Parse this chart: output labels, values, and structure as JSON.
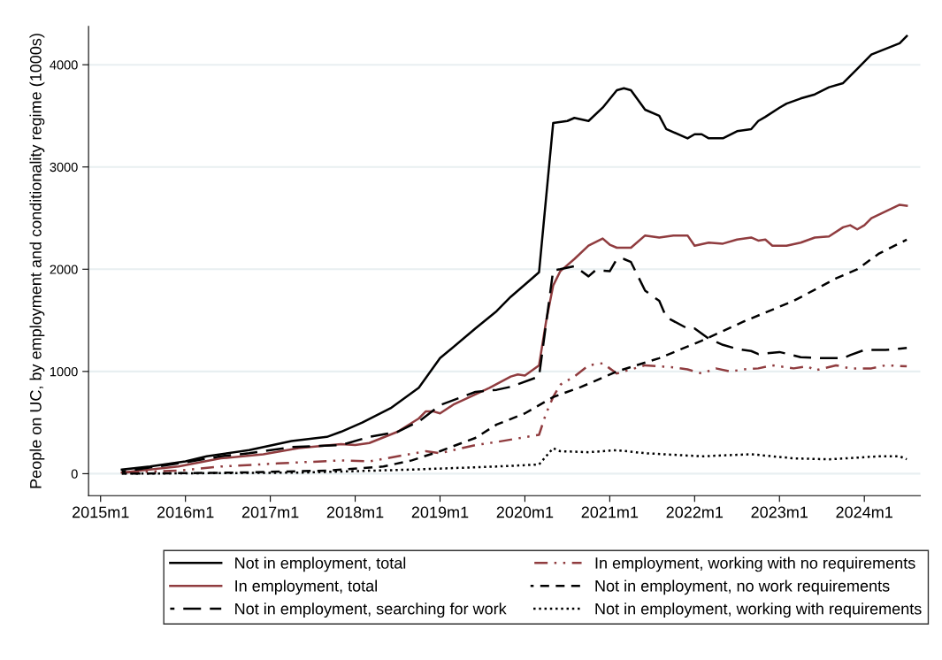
{
  "chart_data": {
    "type": "line",
    "ylabel": "People on UC, by employment and conditionality regime (1000s)",
    "xlim": [
      "2014-11-10",
      "2024-08-29"
    ],
    "ylim": [
      -215,
      4375
    ],
    "xticks": [
      {
        "value": "2015-01",
        "label": "2015m1"
      },
      {
        "value": "2016-01",
        "label": "2016m1"
      },
      {
        "value": "2017-01",
        "label": "2017m1"
      },
      {
        "value": "2018-01",
        "label": "2018m1"
      },
      {
        "value": "2019-01",
        "label": "2019m1"
      },
      {
        "value": "2020-01",
        "label": "2020m1"
      },
      {
        "value": "2021-01",
        "label": "2021m1"
      },
      {
        "value": "2022-01",
        "label": "2022m1"
      },
      {
        "value": "2023-01",
        "label": "2023m1"
      },
      {
        "value": "2024-01",
        "label": "2024m1"
      }
    ],
    "yticks": [
      0,
      1000,
      2000,
      3000,
      4000
    ],
    "grid": "y",
    "legend": "bottom",
    "series": [
      {
        "name": "Not in employment, total",
        "color": "#000000",
        "line_style": "solid",
        "x": [
          "2015-04",
          "2015-08",
          "2016-01",
          "2016-04",
          "2016-10",
          "2017-04",
          "2017-09",
          "2017-11",
          "2018-02",
          "2018-06",
          "2018-10",
          "2019-01",
          "2019-06",
          "2019-09",
          "2019-11",
          "2020-02",
          "2020-03",
          "2020-05",
          "2020-07",
          "2020-08",
          "2020-10",
          "2020-12",
          "2021-02",
          "2021-03",
          "2021-04",
          "2021-06",
          "2021-08",
          "2021-09",
          "2021-12",
          "2022-01",
          "2022-02",
          "2022-03",
          "2022-05",
          "2022-07",
          "2022-09",
          "2022-10",
          "2022-11",
          "2023-01",
          "2023-02",
          "2023-04",
          "2023-06",
          "2023-08",
          "2023-10",
          "2023-12",
          "2024-02",
          "2024-06",
          "2024-07"
        ],
        "values": [
          40,
          70,
          120,
          170,
          230,
          320,
          360,
          410,
          500,
          640,
          840,
          1130,
          1420,
          1590,
          1730,
          1910,
          1970,
          3430,
          3450,
          3480,
          3450,
          3580,
          3750,
          3770,
          3750,
          3560,
          3500,
          3370,
          3280,
          3320,
          3320,
          3280,
          3280,
          3350,
          3370,
          3450,
          3490,
          3580,
          3620,
          3670,
          3710,
          3780,
          3820,
          3960,
          4100,
          4210,
          4280
        ]
      },
      {
        "name": "In employment, total",
        "color": "#903c3f",
        "line_style": "solid",
        "x": [
          "2015-04",
          "2015-12",
          "2016-06",
          "2016-12",
          "2017-05",
          "2017-11",
          "2018-01",
          "2018-03",
          "2018-07",
          "2018-10",
          "2018-11",
          "2018-12",
          "2019-01",
          "2019-03",
          "2019-08",
          "2019-11",
          "2019-12",
          "2020-01",
          "2020-03",
          "2020-04",
          "2020-05",
          "2020-06",
          "2020-08",
          "2020-10",
          "2020-12",
          "2021-01",
          "2021-02",
          "2021-04",
          "2021-06",
          "2021-08",
          "2021-10",
          "2021-12",
          "2022-01",
          "2022-03",
          "2022-05",
          "2022-07",
          "2022-09",
          "2022-10",
          "2022-11",
          "2022-12",
          "2023-02",
          "2023-04",
          "2023-06",
          "2023-08",
          "2023-10",
          "2023-11",
          "2023-12",
          "2024-01",
          "2024-02",
          "2024-06",
          "2024-07"
        ],
        "values": [
          10,
          70,
          150,
          190,
          250,
          290,
          280,
          300,
          410,
          540,
          610,
          610,
          590,
          680,
          840,
          950,
          970,
          960,
          1060,
          1490,
          1840,
          1980,
          2100,
          2230,
          2300,
          2240,
          2210,
          2210,
          2330,
          2310,
          2330,
          2330,
          2230,
          2260,
          2250,
          2290,
          2310,
          2280,
          2290,
          2230,
          2230,
          2260,
          2310,
          2320,
          2410,
          2430,
          2390,
          2430,
          2500,
          2630,
          2620
        ]
      },
      {
        "name": "Not in employment, searching for work",
        "color": "#000000",
        "line_style": "longdash",
        "x": [
          "2015-04",
          "2015-12",
          "2016-06",
          "2016-10",
          "2017-04",
          "2017-11",
          "2018-03",
          "2018-07",
          "2018-10",
          "2019-01",
          "2019-06",
          "2019-09",
          "2019-11",
          "2020-03",
          "2020-05",
          "2020-06",
          "2020-08",
          "2020-10",
          "2020-11",
          "2021-01",
          "2021-02",
          "2021-03",
          "2021-04",
          "2021-06",
          "2021-08",
          "2021-09",
          "2021-12",
          "2022-01",
          "2022-03",
          "2022-05",
          "2022-07",
          "2022-09",
          "2022-10",
          "2023-01",
          "2023-04",
          "2023-07",
          "2023-10",
          "2023-11",
          "2024-01",
          "2024-04",
          "2024-07"
        ],
        "values": [
          20,
          100,
          170,
          200,
          260,
          280,
          360,
          410,
          510,
          670,
          800,
          820,
          850,
          950,
          1990,
          2000,
          2030,
          1930,
          1990,
          1980,
          2100,
          2100,
          2070,
          1790,
          1690,
          1530,
          1420,
          1420,
          1320,
          1260,
          1220,
          1200,
          1170,
          1190,
          1140,
          1130,
          1130,
          1160,
          1210,
          1210,
          1230
        ]
      },
      {
        "name": "In employment, working with no requirements",
        "color": "#903c3f",
        "line_style": "dashdot",
        "x": [
          "2015-04",
          "2015-12",
          "2016-06",
          "2017-02",
          "2017-11",
          "2018-03",
          "2018-07",
          "2018-11",
          "2019-01",
          "2019-06",
          "2019-09",
          "2020-03",
          "2020-04",
          "2020-05",
          "2020-06",
          "2020-08",
          "2020-10",
          "2020-12",
          "2021-02",
          "2021-04",
          "2021-06",
          "2021-10",
          "2021-12",
          "2022-02",
          "2022-04",
          "2022-06",
          "2022-08",
          "2022-10",
          "2022-12",
          "2023-03",
          "2023-05",
          "2023-06",
          "2023-09",
          "2023-11",
          "2024-02",
          "2024-04",
          "2024-07"
        ],
        "values": [
          10,
          30,
          70,
          100,
          130,
          120,
          170,
          220,
          200,
          280,
          310,
          380,
          590,
          750,
          870,
          950,
          1060,
          1080,
          980,
          1020,
          1060,
          1040,
          1020,
          980,
          1030,
          1000,
          1020,
          1030,
          1060,
          1030,
          1050,
          1010,
          1060,
          1030,
          1030,
          1060,
          1050
        ]
      },
      {
        "name": "Not in employment, no work requirements",
        "color": "#000000",
        "line_style": "dashed",
        "x": [
          "2015-04",
          "2016-08",
          "2017-09",
          "2018-05",
          "2018-09",
          "2019-01",
          "2019-06",
          "2019-09",
          "2020-01",
          "2020-05",
          "2020-09",
          "2021-02",
          "2021-08",
          "2022-02",
          "2022-08",
          "2023-03",
          "2023-09",
          "2023-12",
          "2024-03",
          "2024-07"
        ],
        "values": [
          0,
          10,
          30,
          70,
          130,
          220,
          350,
          480,
          590,
          750,
          850,
          1000,
          1130,
          1300,
          1490,
          1690,
          1910,
          2000,
          2150,
          2290
        ]
      },
      {
        "name": "Not in employment, working with requirements",
        "color": "#000000",
        "line_style": "dotted",
        "x": [
          "2015-04",
          "2017-05",
          "2018-09",
          "2019-09",
          "2020-03",
          "2020-05",
          "2020-06",
          "2020-10",
          "2021-02",
          "2021-06",
          "2022-02",
          "2022-09",
          "2023-03",
          "2023-08",
          "2024-03",
          "2024-06",
          "2024-07"
        ],
        "values": [
          0,
          10,
          40,
          70,
          90,
          250,
          220,
          210,
          230,
          200,
          170,
          190,
          150,
          140,
          170,
          170,
          140
        ]
      }
    ]
  }
}
